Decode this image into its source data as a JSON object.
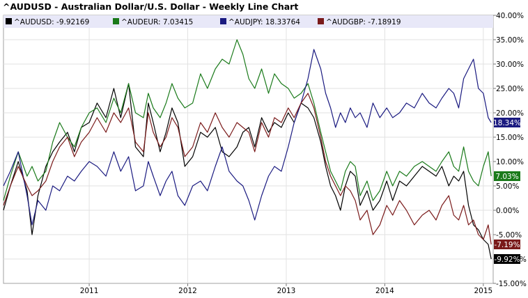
{
  "chart_data": {
    "type": "line",
    "title": "^AUDUSD - Australian Dollar/U.S. Dollar - Weekly Line Chart",
    "xlabel": "",
    "ylabel": "",
    "x_range": [
      2010.13,
      2015.1
    ],
    "ylim": [
      -15,
      40
    ],
    "y_ticks": [
      40,
      35,
      30,
      25,
      20,
      15,
      10,
      5,
      0,
      -5,
      -10,
      -15
    ],
    "y_tick_labels": [
      "40.00%",
      "35.00%",
      "30.00%",
      "25.00%",
      "20.00%",
      "15.00%",
      "10.00%",
      "5.00%",
      "0.00%",
      "-5.00%",
      "-10.00%",
      "-15.00%"
    ],
    "x_ticks": [
      2011,
      2012,
      2013,
      2014,
      2015
    ],
    "x_tick_labels": [
      "2011",
      "2012",
      "2013",
      "2014",
      "2015"
    ],
    "grid": true,
    "legend_position": "top",
    "series": [
      {
        "name": "^AUDUSD",
        "legend_text": "^AUDUSD: -9.92169",
        "end_label": "-9.92%",
        "color": "#000000",
        "x": [
          2010.13,
          2010.2,
          2010.28,
          2010.37,
          2010.42,
          2010.48,
          2010.56,
          2010.63,
          2010.7,
          2010.78,
          2010.85,
          2010.92,
          2011.0,
          2011.08,
          2011.17,
          2011.25,
          2011.32,
          2011.4,
          2011.47,
          2011.55,
          2011.6,
          2011.65,
          2011.72,
          2011.78,
          2011.84,
          2011.9,
          2011.97,
          2012.05,
          2012.13,
          2012.2,
          2012.28,
          2012.35,
          2012.42,
          2012.5,
          2012.56,
          2012.62,
          2012.68,
          2012.75,
          2012.82,
          2012.88,
          2012.95,
          2013.02,
          2013.08,
          2013.15,
          2013.22,
          2013.28,
          2013.35,
          2013.4,
          2013.45,
          2013.5,
          2013.55,
          2013.6,
          2013.65,
          2013.7,
          2013.75,
          2013.82,
          2013.88,
          2013.95,
          2014.02,
          2014.08,
          2014.15,
          2014.22,
          2014.3,
          2014.38,
          2014.45,
          2014.52,
          2014.58,
          2014.65,
          2014.7,
          2014.75,
          2014.8,
          2014.85,
          2014.9,
          2014.95,
          2015.0,
          2015.05,
          2015.08
        ],
        "y": [
          0,
          5,
          10,
          4,
          -5,
          3,
          9,
          12,
          14,
          16,
          12,
          17,
          18,
          22,
          19,
          25,
          19,
          26,
          13,
          11,
          22,
          18,
          12,
          16,
          21,
          18,
          9,
          11,
          16,
          15,
          17,
          12,
          11,
          13,
          16,
          17,
          13,
          19,
          16,
          18,
          17,
          20,
          18,
          22,
          21,
          19,
          14,
          9,
          5,
          3,
          0,
          5,
          8,
          7,
          1,
          4,
          0,
          2,
          6,
          2,
          6,
          5,
          7,
          9,
          8,
          7,
          9,
          5,
          7,
          6,
          8,
          1,
          -3,
          -4,
          -6,
          -7,
          -10
        ]
      },
      {
        "name": "^AUDEUR",
        "legend_text": "^AUDEUR: 7.03415",
        "end_label": "7.03%",
        "color": "#1a7a1a",
        "x": [
          2010.13,
          2010.2,
          2010.28,
          2010.37,
          2010.42,
          2010.48,
          2010.56,
          2010.63,
          2010.7,
          2010.78,
          2010.85,
          2010.92,
          2011.0,
          2011.08,
          2011.17,
          2011.25,
          2011.32,
          2011.4,
          2011.47,
          2011.55,
          2011.6,
          2011.65,
          2011.72,
          2011.78,
          2011.84,
          2011.9,
          2011.97,
          2012.05,
          2012.13,
          2012.2,
          2012.28,
          2012.35,
          2012.42,
          2012.5,
          2012.56,
          2012.62,
          2012.68,
          2012.75,
          2012.82,
          2012.88,
          2012.95,
          2013.02,
          2013.08,
          2013.15,
          2013.22,
          2013.28,
          2013.35,
          2013.4,
          2013.45,
          2013.5,
          2013.55,
          2013.6,
          2013.65,
          2013.7,
          2013.75,
          2013.82,
          2013.88,
          2013.95,
          2014.02,
          2014.08,
          2014.15,
          2014.22,
          2014.3,
          2014.38,
          2014.45,
          2014.52,
          2014.58,
          2014.65,
          2014.7,
          2014.75,
          2014.8,
          2014.85,
          2014.9,
          2014.95,
          2015.0,
          2015.05,
          2015.08
        ],
        "y": [
          2,
          7,
          12,
          7,
          9,
          6,
          8,
          14,
          18,
          15,
          13,
          17,
          20,
          21,
          18,
          23,
          20,
          26,
          20,
          19,
          24,
          21,
          19,
          22,
          26,
          23,
          21,
          22,
          28,
          25,
          29,
          31,
          30,
          35,
          32,
          27,
          25,
          29,
          24,
          28,
          26,
          25,
          23,
          24,
          26,
          22,
          16,
          12,
          8,
          6,
          4,
          8,
          10,
          9,
          3,
          6,
          2,
          4,
          8,
          5,
          8,
          7,
          9,
          10,
          9,
          8,
          10,
          12,
          9,
          8,
          13,
          8,
          6,
          5,
          9,
          12,
          7
        ]
      },
      {
        "name": "^AUDJPY",
        "legend_text": "^AUDJPY: 18.33764",
        "end_label": "18.34%",
        "color": "#1a1a80",
        "x": [
          2010.13,
          2010.2,
          2010.28,
          2010.37,
          2010.42,
          2010.48,
          2010.56,
          2010.63,
          2010.7,
          2010.78,
          2010.85,
          2010.92,
          2011.0,
          2011.08,
          2011.17,
          2011.25,
          2011.32,
          2011.4,
          2011.47,
          2011.55,
          2011.6,
          2011.65,
          2011.72,
          2011.78,
          2011.84,
          2011.9,
          2011.97,
          2012.05,
          2012.13,
          2012.2,
          2012.28,
          2012.35,
          2012.42,
          2012.5,
          2012.56,
          2012.62,
          2012.68,
          2012.75,
          2012.82,
          2012.88,
          2012.95,
          2013.02,
          2013.08,
          2013.15,
          2013.22,
          2013.28,
          2013.35,
          2013.4,
          2013.45,
          2013.5,
          2013.55,
          2013.6,
          2013.65,
          2013.7,
          2013.75,
          2013.82,
          2013.88,
          2013.95,
          2014.02,
          2014.08,
          2014.15,
          2014.22,
          2014.3,
          2014.38,
          2014.45,
          2014.52,
          2014.58,
          2014.65,
          2014.7,
          2014.75,
          2014.8,
          2014.85,
          2014.9,
          2014.95,
          2015.0,
          2015.05,
          2015.08
        ],
        "y": [
          5,
          8,
          12,
          3,
          -3,
          2,
          0,
          5,
          4,
          7,
          6,
          8,
          10,
          9,
          7,
          12,
          8,
          11,
          4,
          5,
          10,
          7,
          3,
          6,
          8,
          3,
          1,
          5,
          6,
          4,
          9,
          13,
          8,
          6,
          5,
          2,
          -2,
          3,
          7,
          9,
          8,
          13,
          18,
          22,
          27,
          33,
          29,
          24,
          21,
          17,
          20,
          18,
          21,
          19,
          20,
          17,
          22,
          19,
          21,
          19,
          20,
          22,
          21,
          24,
          22,
          21,
          23,
          25,
          24,
          21,
          27,
          29,
          31,
          25,
          24,
          19,
          18
        ]
      },
      {
        "name": "^AUDGBP",
        "legend_text": "^AUDGBP: -7.18919",
        "end_label": "-7.19%",
        "color": "#7a1a1a",
        "x": [
          2010.13,
          2010.2,
          2010.28,
          2010.37,
          2010.42,
          2010.48,
          2010.56,
          2010.63,
          2010.7,
          2010.78,
          2010.85,
          2010.92,
          2011.0,
          2011.08,
          2011.17,
          2011.25,
          2011.32,
          2011.4,
          2011.47,
          2011.55,
          2011.6,
          2011.65,
          2011.72,
          2011.78,
          2011.84,
          2011.9,
          2011.97,
          2012.05,
          2012.13,
          2012.2,
          2012.28,
          2012.35,
          2012.42,
          2012.5,
          2012.56,
          2012.62,
          2012.68,
          2012.75,
          2012.82,
          2012.88,
          2012.95,
          2013.02,
          2013.08,
          2013.15,
          2013.22,
          2013.28,
          2013.35,
          2013.4,
          2013.45,
          2013.5,
          2013.55,
          2013.6,
          2013.65,
          2013.7,
          2013.75,
          2013.82,
          2013.88,
          2013.95,
          2014.02,
          2014.08,
          2014.15,
          2014.22,
          2014.3,
          2014.38,
          2014.45,
          2014.52,
          2014.58,
          2014.65,
          2014.7,
          2014.75,
          2014.8,
          2014.85,
          2014.9,
          2014.95,
          2015.0,
          2015.05,
          2015.08
        ],
        "y": [
          1,
          5,
          9,
          5,
          3,
          4,
          6,
          10,
          13,
          15,
          11,
          14,
          16,
          19,
          16,
          20,
          18,
          21,
          14,
          12,
          20,
          16,
          13,
          15,
          19,
          17,
          11,
          13,
          18,
          16,
          20,
          17,
          15,
          18,
          17,
          16,
          12,
          18,
          15,
          19,
          18,
          21,
          19,
          22,
          24,
          21,
          15,
          10,
          7,
          5,
          3,
          5,
          4,
          2,
          -2,
          0,
          -5,
          -3,
          1,
          -1,
          2,
          0,
          -3,
          -1,
          0,
          -2,
          1,
          3,
          -1,
          -2,
          1,
          -3,
          -2,
          -5,
          -6,
          -3,
          -7
        ]
      }
    ]
  }
}
